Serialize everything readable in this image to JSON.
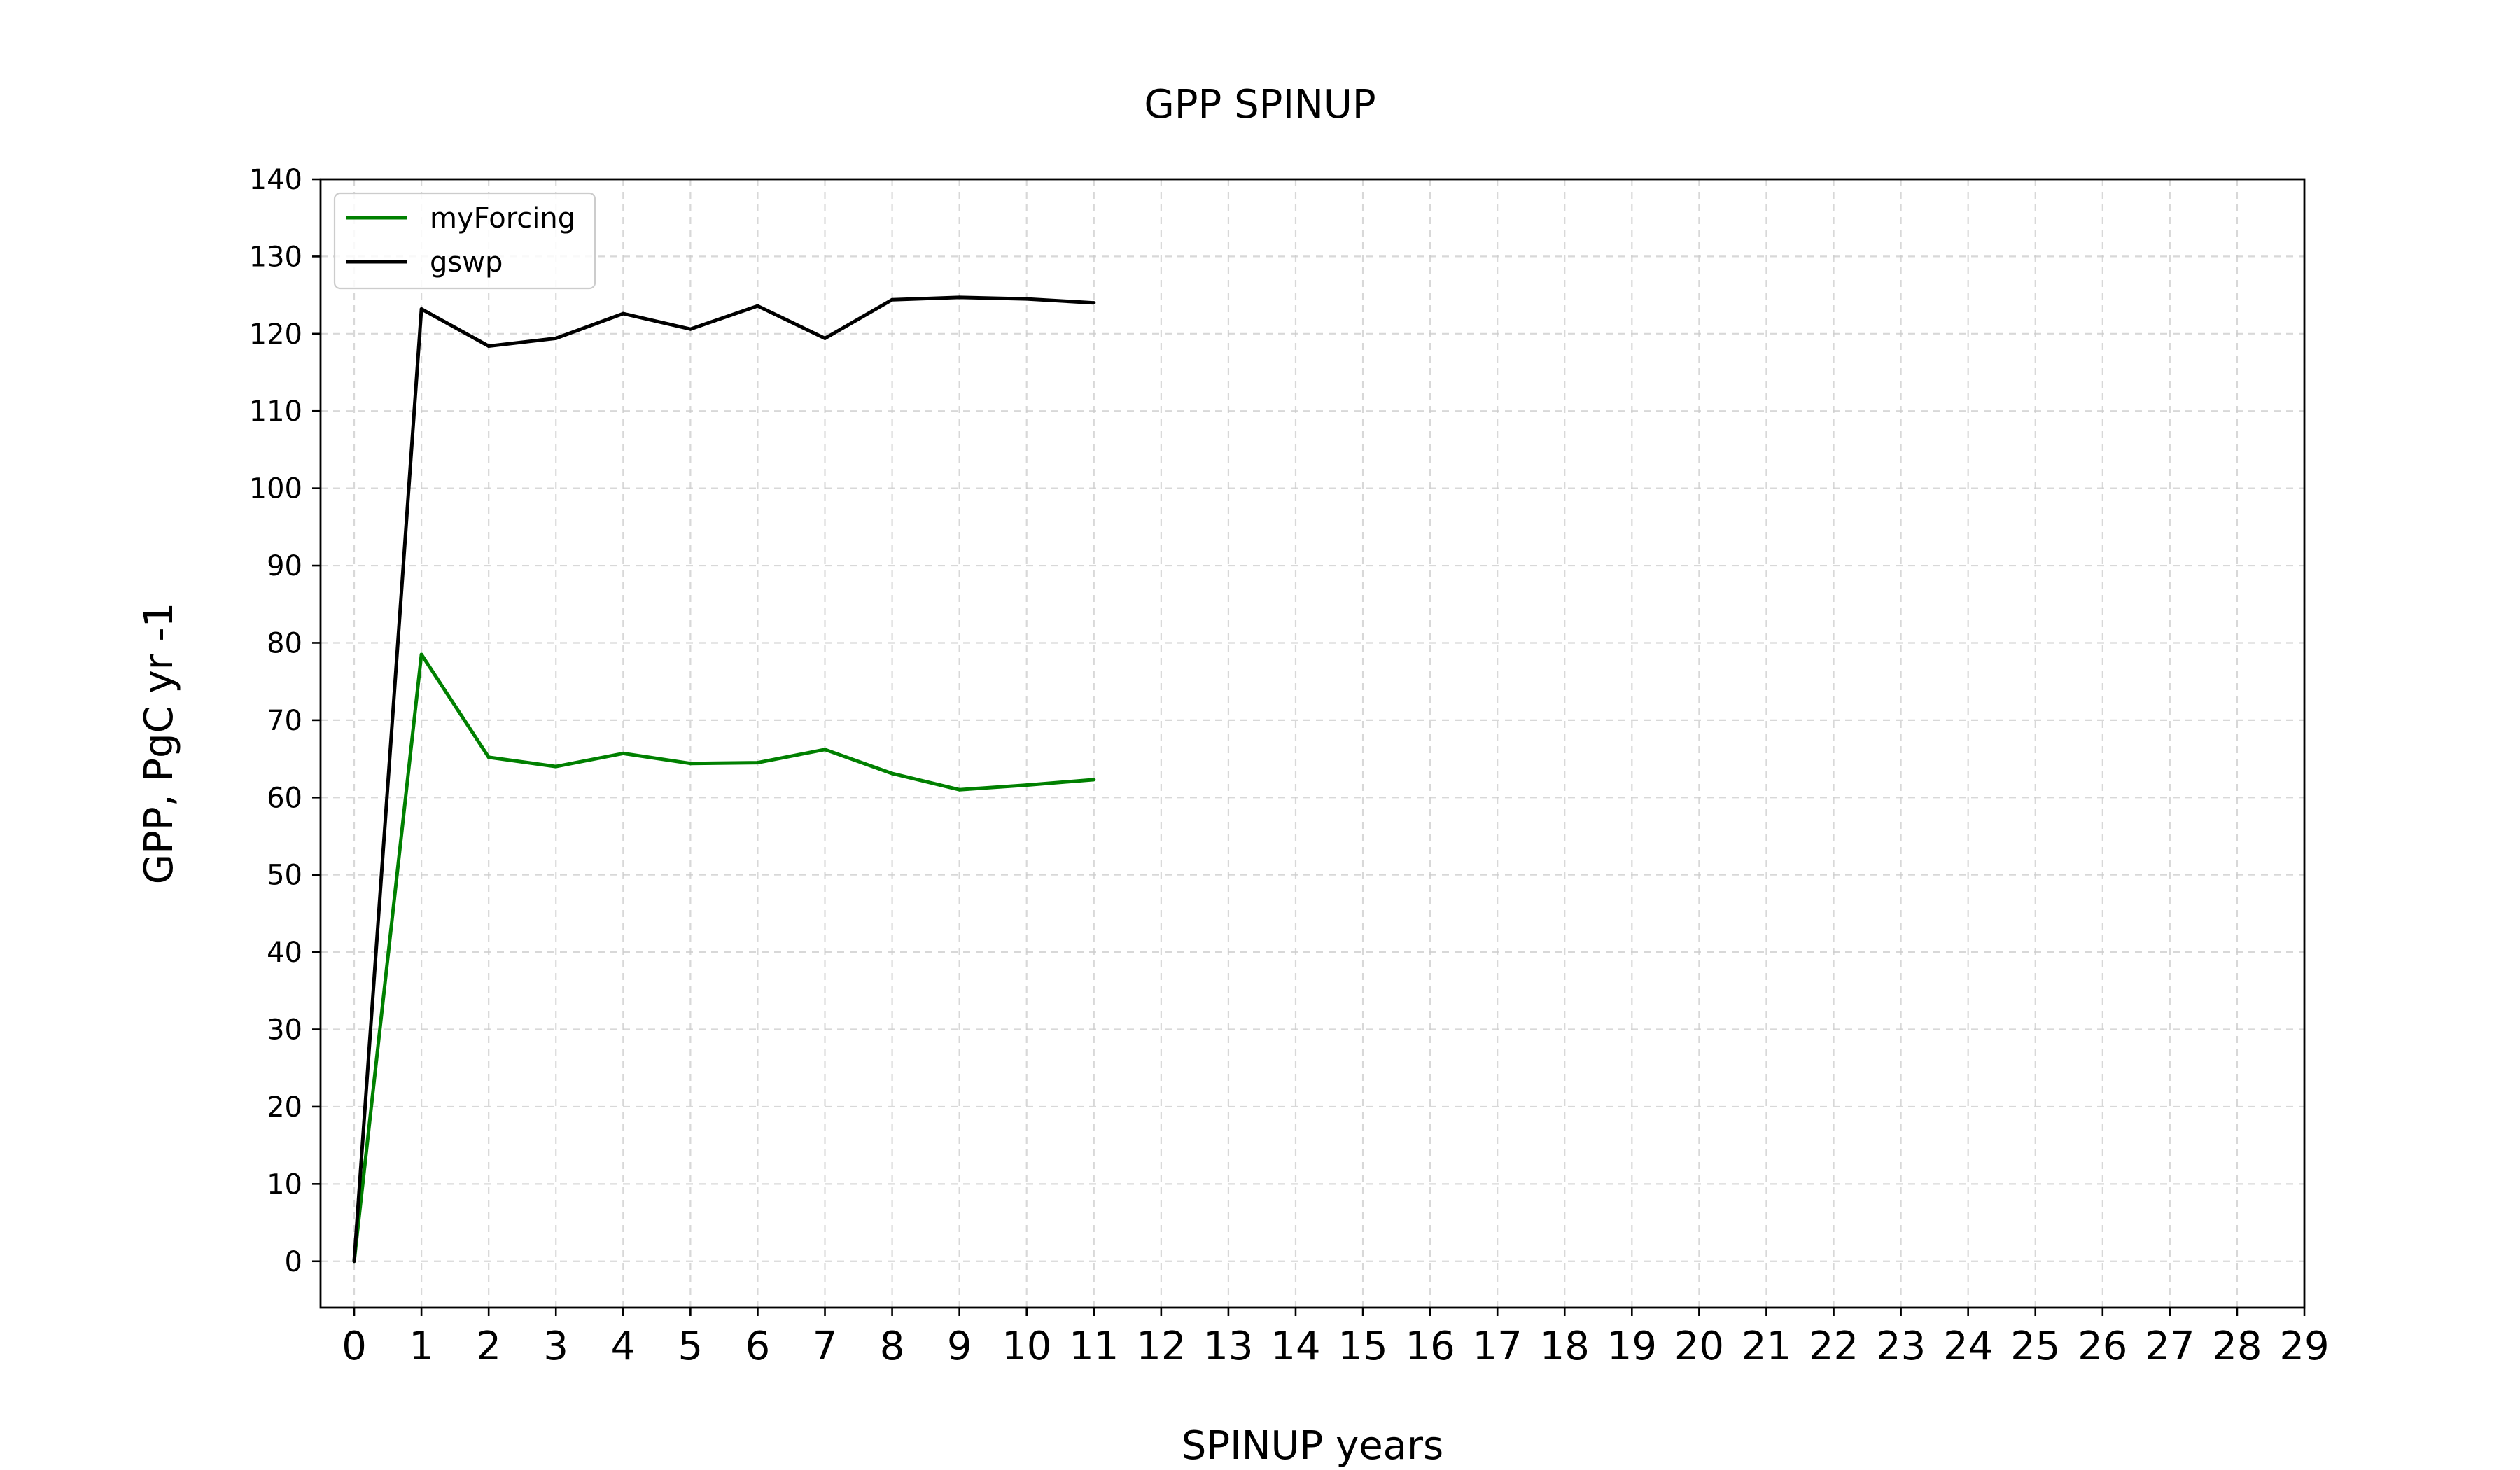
{
  "chart_data": {
    "type": "line",
    "title": "GPP SPINUP",
    "xlabel": "SPINUP years",
    "ylabel": "GPP, PgC yr -1",
    "xlim": [
      -0.5,
      29
    ],
    "ylim": [
      -6,
      140
    ],
    "xticks": [
      0,
      1,
      2,
      3,
      4,
      5,
      6,
      7,
      8,
      9,
      10,
      11,
      12,
      13,
      14,
      15,
      16,
      17,
      18,
      19,
      20,
      21,
      22,
      23,
      24,
      25,
      26,
      27,
      28,
      29
    ],
    "yticks": [
      0,
      10,
      20,
      30,
      40,
      50,
      60,
      70,
      80,
      90,
      100,
      110,
      120,
      130,
      140
    ],
    "grid": true,
    "legend_position": "top-left",
    "series": [
      {
        "name": "myForcing",
        "color": "#008000",
        "x": [
          0,
          1,
          2,
          3,
          4,
          5,
          6,
          7,
          8,
          9,
          10,
          11
        ],
        "values": [
          0,
          78.5,
          65.2,
          64.0,
          65.7,
          64.4,
          64.5,
          66.2,
          63.1,
          61.0,
          61.6,
          62.3
        ]
      },
      {
        "name": "gswp",
        "color": "#000000",
        "x": [
          0,
          1,
          2,
          3,
          4,
          5,
          6,
          7,
          8,
          9,
          10,
          11
        ],
        "values": [
          0,
          123.2,
          118.4,
          119.4,
          122.6,
          120.6,
          123.6,
          119.4,
          124.4,
          124.7,
          124.5,
          124.0
        ]
      }
    ]
  }
}
